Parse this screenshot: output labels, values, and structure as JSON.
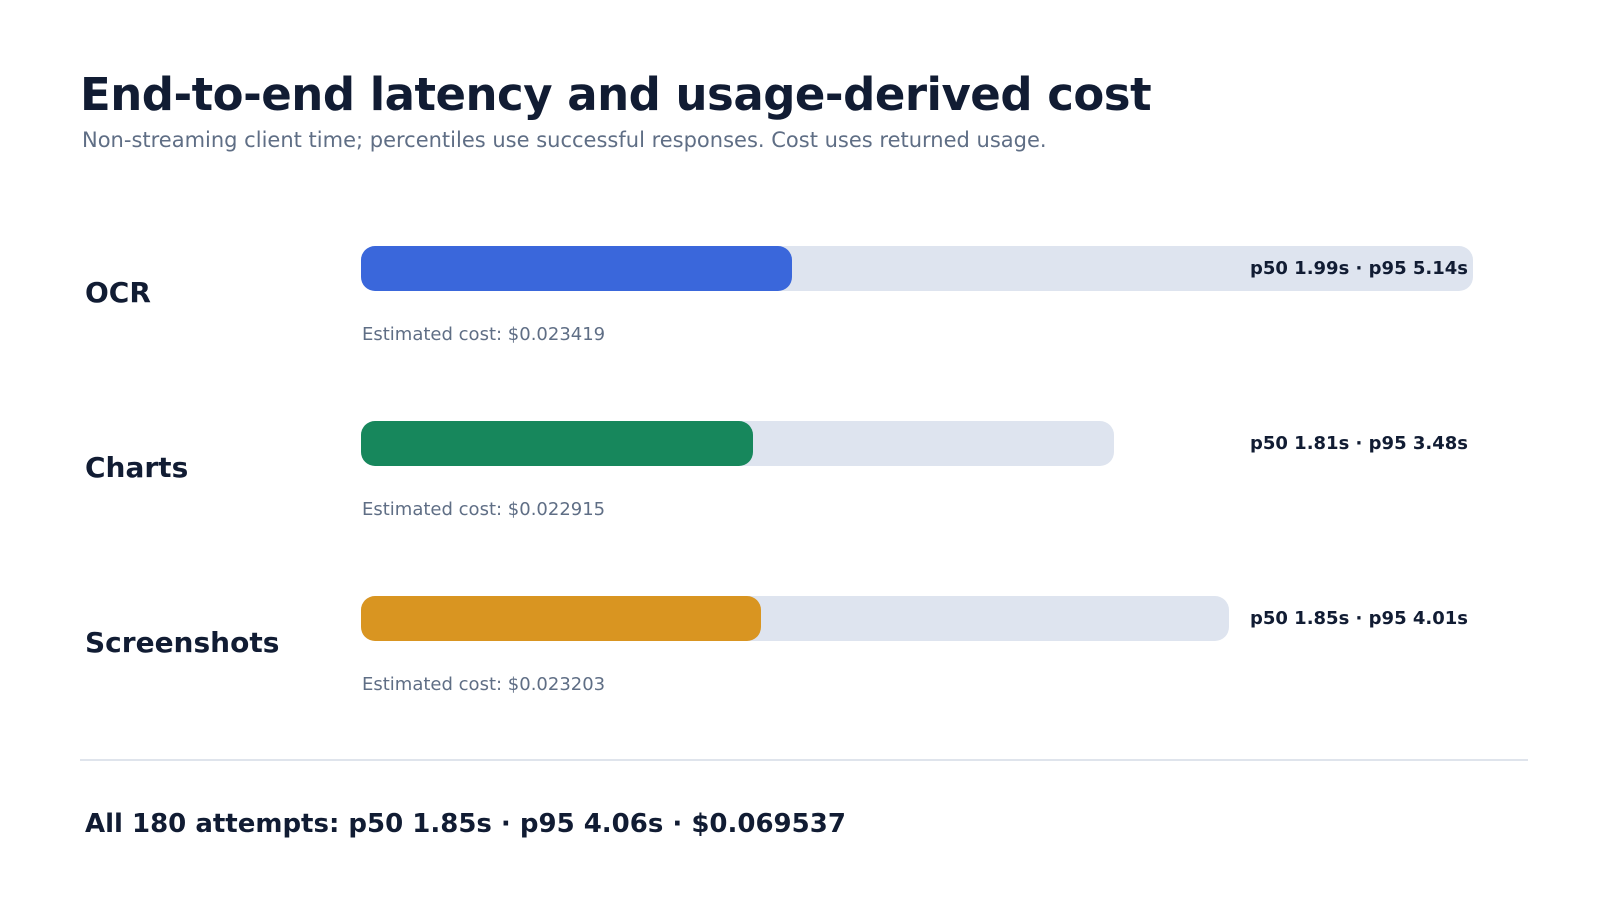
{
  "header": {
    "title": "End-to-end latency and usage-derived cost",
    "subtitle": "Non-streaming client time; percentiles use successful responses. Cost uses returned usage."
  },
  "chart_data": {
    "type": "bar",
    "orientation": "horizontal",
    "title": "End-to-end latency and usage-derived cost",
    "subtitle": "Non-streaming client time; percentiles use successful responses. Cost uses returned usage.",
    "unit": "s",
    "xlim": [
      0,
      5.14
    ],
    "categories": [
      "OCR",
      "Charts",
      "Screenshots"
    ],
    "series": [
      {
        "name": "p50",
        "values": [
          1.99,
          1.81,
          1.85
        ]
      },
      {
        "name": "p95",
        "values": [
          5.14,
          3.48,
          4.01
        ]
      }
    ],
    "rows": [
      {
        "label": "OCR",
        "p50": 1.99,
        "p95": 5.14,
        "percentile_text": "p50 1.99s · p95 5.14s",
        "cost_text": "Estimated cost: $0.023419",
        "color": "#3a67db"
      },
      {
        "label": "Charts",
        "p50": 1.81,
        "p95": 3.48,
        "percentile_text": "p50 1.81s · p95 3.48s",
        "cost_text": "Estimated cost: $0.022915",
        "color": "#17875c"
      },
      {
        "label": "Screenshots",
        "p50": 1.85,
        "p95": 4.01,
        "percentile_text": "p50 1.85s · p95 4.01s",
        "cost_text": "Estimated cost: $0.023203",
        "color": "#d99521"
      }
    ],
    "track_color": "#dee4ef"
  },
  "summary": {
    "text": "All 180 attempts: p50 1.85s · p95 4.06s · $0.069537"
  }
}
